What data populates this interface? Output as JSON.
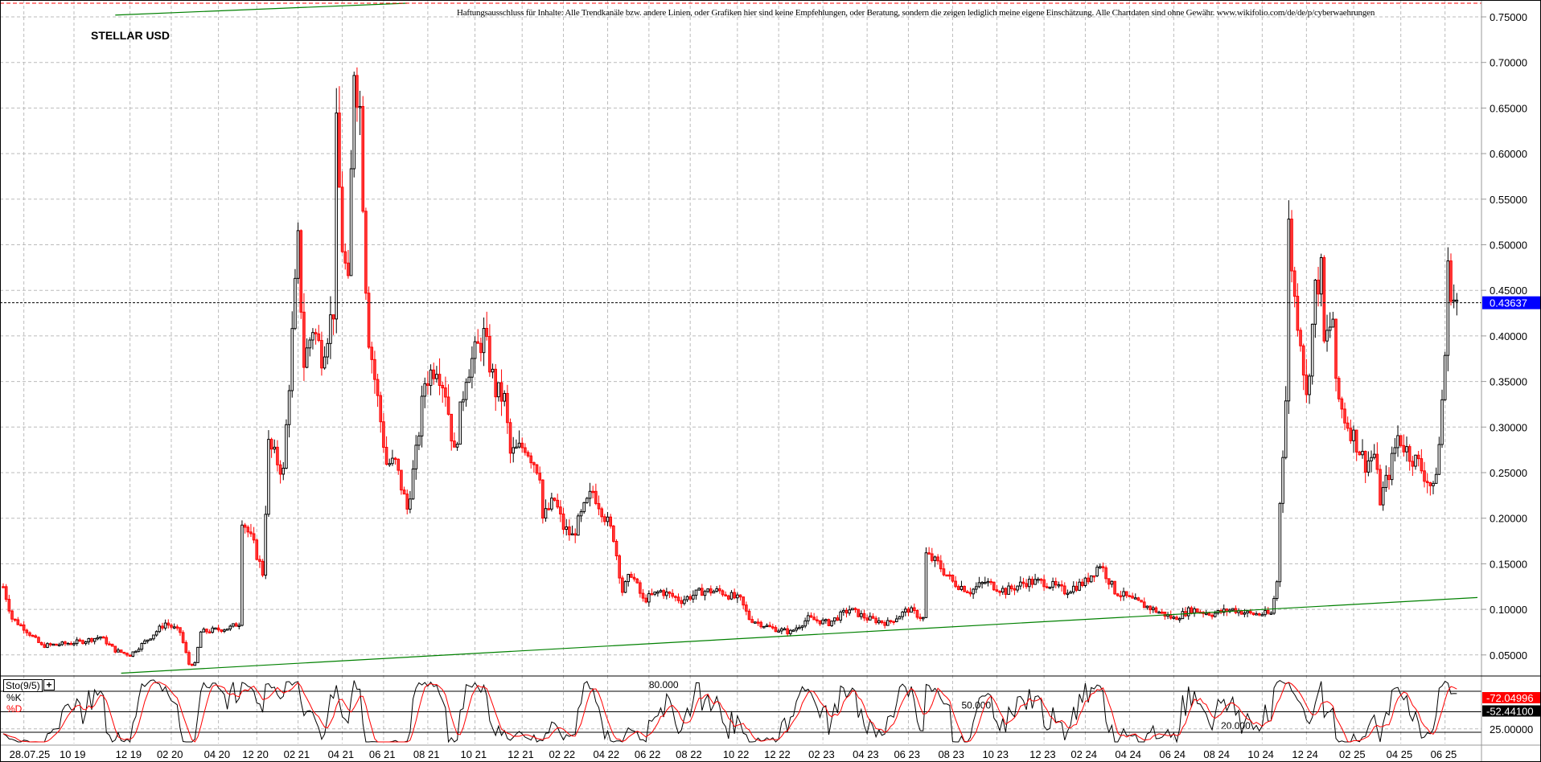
{
  "header": {
    "title": "STELLAR USD",
    "disclaimer": "Haftungsausschluss für Inhalte: Alle Trendkanäle bzw. andere Linien, oder Grafiken hier sind keine Empfehlungen, oder Beratung, sondern die zeigen lediglich meine eigene Einschätzung. Alle Chartdaten sind ohne Gewähr.  www.wikifolio.com/de/de/p/cyberwaehrungen"
  },
  "indicator": {
    "name": "Sto(9/5)",
    "expand_label": "+",
    "k_label": "%K",
    "d_label": "%D",
    "levels": [
      {
        "value": 80,
        "label": "80.000"
      },
      {
        "value": 50,
        "label": "50.000"
      },
      {
        "value": 20,
        "label": "20.000"
      }
    ],
    "k_value": "72.04996",
    "d_value": "52.44100",
    "axis_label": "25.00000",
    "colors": {
      "k": "#000000",
      "d": "#ff0000",
      "k_badge": "#ff0000",
      "d_badge": "#000000"
    }
  },
  "chart_data": {
    "type": "candlestick",
    "title": "STELLAR USD",
    "ylim": [
      0.02,
      0.77
    ],
    "yticks": [
      "0.05000",
      "0.10000",
      "0.15000",
      "0.20000",
      "0.25000",
      "0.30000",
      "0.35000",
      "0.40000",
      "0.45000",
      "0.50000",
      "0.55000",
      "0.60000",
      "0.65000",
      "0.70000",
      "0.75000"
    ],
    "last_price": "0.43637",
    "grid": true,
    "colors": {
      "up": "#000000",
      "down": "#ff0000",
      "last_price_badge": "#0000ff",
      "trendline": "#008000",
      "high_line": "#ff0000"
    },
    "xticks": [
      {
        "label": "28.07.25",
        "bar": 7
      },
      {
        "label": "10 19",
        "bar": 24
      },
      {
        "label": "12 19",
        "bar": 43
      },
      {
        "label": "02 20",
        "bar": 57
      },
      {
        "label": "04 20",
        "bar": 73
      },
      {
        "label": "12 20",
        "bar": 86
      },
      {
        "label": "02 21",
        "bar": 100
      },
      {
        "label": "04 21",
        "bar": 115
      },
      {
        "label": "06 21",
        "bar": 129
      },
      {
        "label": "08 21",
        "bar": 144
      },
      {
        "label": "10 21",
        "bar": 160
      },
      {
        "label": "12 21",
        "bar": 176
      },
      {
        "label": "02 22",
        "bar": 190
      },
      {
        "label": "04 22",
        "bar": 205
      },
      {
        "label": "06 22",
        "bar": 219
      },
      {
        "label": "08 22",
        "bar": 233
      },
      {
        "label": "10 22",
        "bar": 249
      },
      {
        "label": "12 22",
        "bar": 263
      },
      {
        "label": "02 23",
        "bar": 278
      },
      {
        "label": "04 23",
        "bar": 293
      },
      {
        "label": "06 23",
        "bar": 307
      },
      {
        "label": "08 23",
        "bar": 322
      },
      {
        "label": "10 23",
        "bar": 337
      },
      {
        "label": "12 23",
        "bar": 353
      },
      {
        "label": "02 24",
        "bar": 367
      },
      {
        "label": "04 24",
        "bar": 382
      },
      {
        "label": "06 24",
        "bar": 397
      },
      {
        "label": "08 24",
        "bar": 412
      },
      {
        "label": "10 24",
        "bar": 427
      },
      {
        "label": "12 24",
        "bar": 442
      },
      {
        "label": "02 25",
        "bar": 458
      },
      {
        "label": "04 25",
        "bar": 474
      },
      {
        "label": "06 25",
        "bar": 489
      }
    ],
    "close_path": [
      [
        0,
        0.125
      ],
      [
        3,
        0.09
      ],
      [
        7,
        0.08
      ],
      [
        13,
        0.06
      ],
      [
        20,
        0.062
      ],
      [
        27,
        0.065
      ],
      [
        33,
        0.07
      ],
      [
        38,
        0.055
      ],
      [
        43,
        0.05
      ],
      [
        50,
        0.07
      ],
      [
        55,
        0.085
      ],
      [
        60,
        0.075
      ],
      [
        63,
        0.04
      ],
      [
        65,
        0.04
      ],
      [
        67,
        0.075
      ],
      [
        77,
        0.08
      ],
      [
        80,
        0.085
      ],
      [
        81,
        0.2
      ],
      [
        85,
        0.17
      ],
      [
        88,
        0.14
      ],
      [
        90,
        0.28
      ],
      [
        95,
        0.25
      ],
      [
        98,
        0.4
      ],
      [
        100,
        0.5
      ],
      [
        102,
        0.37
      ],
      [
        105,
        0.41
      ],
      [
        108,
        0.38
      ],
      [
        112,
        0.43
      ],
      [
        113,
        0.62
      ],
      [
        115,
        0.5
      ],
      [
        117,
        0.45
      ],
      [
        119,
        0.7
      ],
      [
        121,
        0.65
      ],
      [
        123,
        0.46
      ],
      [
        124,
        0.4
      ],
      [
        127,
        0.33
      ],
      [
        130,
        0.26
      ],
      [
        133,
        0.26
      ],
      [
        137,
        0.21
      ],
      [
        140,
        0.27
      ],
      [
        143,
        0.35
      ],
      [
        147,
        0.37
      ],
      [
        150,
        0.34
      ],
      [
        153,
        0.27
      ],
      [
        157,
        0.36
      ],
      [
        160,
        0.38
      ],
      [
        163,
        0.4
      ],
      [
        167,
        0.34
      ],
      [
        170,
        0.33
      ],
      [
        172,
        0.27
      ],
      [
        177,
        0.28
      ],
      [
        182,
        0.25
      ],
      [
        183,
        0.2
      ],
      [
        187,
        0.22
      ],
      [
        190,
        0.19
      ],
      [
        193,
        0.18
      ],
      [
        197,
        0.21
      ],
      [
        200,
        0.23
      ],
      [
        203,
        0.21
      ],
      [
        207,
        0.18
      ],
      [
        210,
        0.12
      ],
      [
        213,
        0.14
      ],
      [
        217,
        0.11
      ],
      [
        223,
        0.12
      ],
      [
        230,
        0.11
      ],
      [
        237,
        0.12
      ],
      [
        243,
        0.12
      ],
      [
        250,
        0.11
      ],
      [
        253,
        0.09
      ],
      [
        260,
        0.08
      ],
      [
        267,
        0.075
      ],
      [
        273,
        0.09
      ],
      [
        280,
        0.085
      ],
      [
        287,
        0.1
      ],
      [
        293,
        0.09
      ],
      [
        300,
        0.085
      ],
      [
        307,
        0.1
      ],
      [
        312,
        0.09
      ],
      [
        313,
        0.16
      ],
      [
        317,
        0.15
      ],
      [
        322,
        0.13
      ],
      [
        328,
        0.12
      ],
      [
        333,
        0.13
      ],
      [
        340,
        0.12
      ],
      [
        347,
        0.13
      ],
      [
        353,
        0.13
      ],
      [
        360,
        0.12
      ],
      [
        367,
        0.13
      ],
      [
        372,
        0.15
      ],
      [
        377,
        0.12
      ],
      [
        383,
        0.11
      ],
      [
        390,
        0.1
      ],
      [
        397,
        0.09
      ],
      [
        403,
        0.1
      ],
      [
        410,
        0.095
      ],
      [
        417,
        0.1
      ],
      [
        423,
        0.095
      ],
      [
        430,
        0.095
      ],
      [
        432,
        0.13
      ],
      [
        433,
        0.22
      ],
      [
        435,
        0.33
      ],
      [
        436,
        0.52
      ],
      [
        438,
        0.44
      ],
      [
        440,
        0.4
      ],
      [
        442,
        0.33
      ],
      [
        445,
        0.45
      ],
      [
        447,
        0.47
      ],
      [
        448,
        0.39
      ],
      [
        451,
        0.42
      ],
      [
        452,
        0.34
      ],
      [
        455,
        0.31
      ],
      [
        458,
        0.29
      ],
      [
        462,
        0.26
      ],
      [
        465,
        0.27
      ],
      [
        467,
        0.22
      ],
      [
        470,
        0.25
      ],
      [
        473,
        0.29
      ],
      [
        477,
        0.27
      ],
      [
        480,
        0.26
      ],
      [
        485,
        0.23
      ],
      [
        487,
        0.28
      ],
      [
        489,
        0.38
      ],
      [
        490,
        0.47
      ],
      [
        492,
        0.44
      ],
      [
        493,
        0.436
      ]
    ],
    "trendlines": [
      {
        "from": [
          40,
          0.03
        ],
        "to": [
          500,
          0.113
        ]
      },
      {
        "from": [
          38,
          0.752
        ],
        "to": [
          137,
          0.765
        ]
      }
    ],
    "high_line": 0.765
  }
}
